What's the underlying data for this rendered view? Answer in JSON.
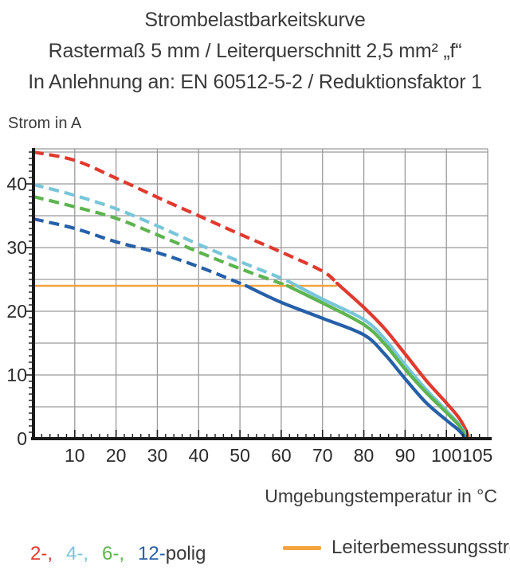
{
  "title": {
    "line1": "Strombelastbarkeitskurve",
    "line2": "Rastermaß 5 mm / Leiterquerschnitt 2,5 mm² „f“",
    "line3": "In Anlehnung an: EN 60512-5-2 / Reduktionsfaktor 1"
  },
  "chart_data": {
    "type": "line",
    "title": "Strombelastbarkeitskurve",
    "xlabel": "Umgebungstemperatur in °C",
    "ylabel": "Strom in A",
    "xlim": [
      0,
      110
    ],
    "ylim": [
      0,
      45.5
    ],
    "grid": true,
    "grid_color": "#9a9a9a",
    "axis_color": "#1a1a1a",
    "x_major_ticks": [
      10,
      20,
      30,
      40,
      50,
      60,
      70,
      80,
      90,
      100,
      105
    ],
    "y_major_ticks": [
      0,
      10,
      20,
      30,
      40
    ],
    "x_minor_step": 2,
    "y_minor_step": 1,
    "series": [
      {
        "name": "2-polig",
        "color": "#e03a2f",
        "style": "dashed-then-solid",
        "solid_from": 73.5,
        "points": [
          [
            0,
            45.0
          ],
          [
            10,
            43.7
          ],
          [
            20,
            40.9
          ],
          [
            30,
            37.9
          ],
          [
            40,
            35.0
          ],
          [
            50,
            32.1
          ],
          [
            60,
            29.3
          ],
          [
            70,
            26.3
          ],
          [
            73.5,
            24.4
          ],
          [
            80,
            20.6
          ],
          [
            85,
            17.3
          ],
          [
            90,
            13.3
          ],
          [
            95,
            9.2
          ],
          [
            100,
            5.6
          ],
          [
            103,
            3.3
          ],
          [
            104.8,
            1.2
          ],
          [
            105.3,
            0
          ]
        ]
      },
      {
        "name": "4-polig",
        "color": "#79c6d9",
        "style": "dashed-then-solid",
        "solid_from": 63.5,
        "points": [
          [
            0,
            39.9
          ],
          [
            10,
            38.2
          ],
          [
            20,
            36.1
          ],
          [
            30,
            33.4
          ],
          [
            40,
            30.5
          ],
          [
            50,
            27.8
          ],
          [
            60,
            25.2
          ],
          [
            63.5,
            24.1
          ],
          [
            70,
            21.9
          ],
          [
            80,
            18.7
          ],
          [
            85,
            15.7
          ],
          [
            90,
            11.6
          ],
          [
            95,
            7.8
          ],
          [
            100,
            4.4
          ],
          [
            103,
            2.3
          ],
          [
            104.5,
            0.8
          ],
          [
            105.0,
            0
          ]
        ]
      },
      {
        "name": "6-polig",
        "color": "#5eb44f",
        "style": "dashed-then-solid",
        "solid_from": 61.5,
        "points": [
          [
            0,
            38.0
          ],
          [
            10,
            36.4
          ],
          [
            20,
            34.6
          ],
          [
            30,
            32.0
          ],
          [
            40,
            29.3
          ],
          [
            50,
            26.7
          ],
          [
            61.5,
            24.0
          ],
          [
            70,
            21.3
          ],
          [
            80,
            17.9
          ],
          [
            85,
            14.9
          ],
          [
            90,
            10.9
          ],
          [
            95,
            7.3
          ],
          [
            100,
            4.1
          ],
          [
            103,
            2.1
          ],
          [
            104.3,
            0.7
          ],
          [
            104.8,
            0
          ]
        ]
      },
      {
        "name": "12-polig",
        "color": "#2560a8",
        "style": "dashed-then-solid",
        "solid_from": 51.5,
        "points": [
          [
            0,
            34.5
          ],
          [
            10,
            33.0
          ],
          [
            20,
            30.9
          ],
          [
            30,
            29.2
          ],
          [
            40,
            27.0
          ],
          [
            51.5,
            24.0
          ],
          [
            60,
            21.4
          ],
          [
            70,
            18.9
          ],
          [
            80,
            16.3
          ],
          [
            85,
            13.3
          ],
          [
            90,
            9.4
          ],
          [
            95,
            5.7
          ],
          [
            100,
            2.9
          ],
          [
            102.5,
            1.6
          ],
          [
            104,
            0.6
          ],
          [
            104.4,
            0
          ]
        ]
      }
    ],
    "reference_line": {
      "label": "Leiterbemessungsstrom",
      "color": "#f4a33d",
      "value": 24,
      "x_start": 0,
      "x_end": 73.5
    }
  },
  "legend": {
    "items": [
      {
        "label": "2-,"
      },
      {
        "label": "4-,"
      },
      {
        "label": "6-,"
      },
      {
        "label": "12-"
      }
    ],
    "suffix": "polig"
  }
}
